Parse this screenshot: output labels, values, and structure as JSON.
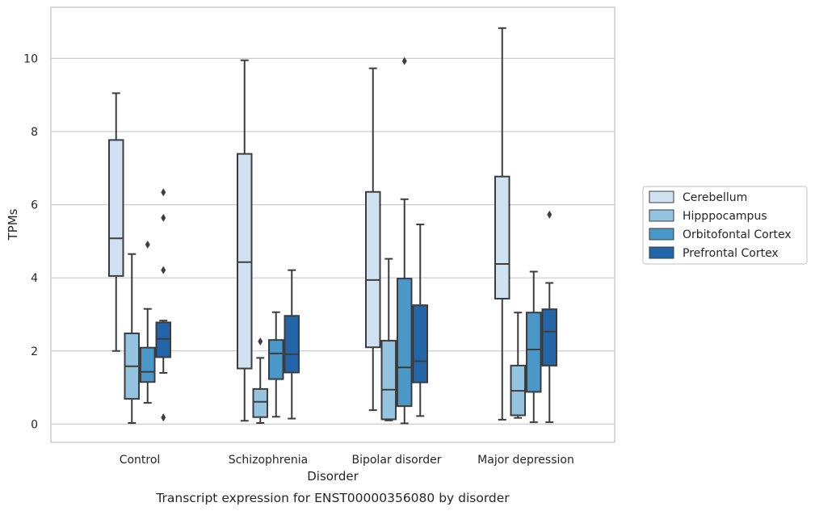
{
  "chart_data": {
    "type": "box",
    "title": "",
    "caption": "Transcript expression for ENST00000356080 by disorder",
    "xlabel": "Disorder",
    "ylabel": "TPMs",
    "ylim": [
      -0.5,
      11.4
    ],
    "yticks": [
      "0",
      "2",
      "4",
      "6",
      "8",
      "10"
    ],
    "grid": "horizontal",
    "legend_position": "right",
    "categories": [
      "Control",
      "Schizophrenia",
      "Bipolar disorder",
      "Major depression"
    ],
    "series": [
      {
        "name": "Cerebellum",
        "color": "#d0e1f2",
        "boxes": [
          {
            "whisker_low": 2.0,
            "q1": 4.05,
            "median": 5.08,
            "q3": 7.77,
            "whisker_high": 9.05,
            "outliers": []
          },
          {
            "whisker_low": 0.09,
            "q1": 1.52,
            "median": 4.43,
            "q3": 7.39,
            "whisker_high": 9.95,
            "outliers": []
          },
          {
            "whisker_low": 0.38,
            "q1": 2.1,
            "median": 3.94,
            "q3": 6.35,
            "whisker_high": 9.73,
            "outliers": []
          },
          {
            "whisker_low": 0.12,
            "q1": 3.43,
            "median": 4.38,
            "q3": 6.77,
            "whisker_high": 10.83,
            "outliers": []
          }
        ]
      },
      {
        "name": "Hipppocampus",
        "color": "#94c4df",
        "boxes": [
          {
            "whisker_low": 0.03,
            "q1": 0.69,
            "median": 1.58,
            "q3": 2.48,
            "whisker_high": 4.65,
            "outliers": []
          },
          {
            "whisker_low": 0.03,
            "q1": 0.19,
            "median": 0.61,
            "q3": 0.96,
            "whisker_high": 1.81,
            "outliers": [
              2.26
            ]
          },
          {
            "whisker_low": 0.1,
            "q1": 0.13,
            "median": 0.94,
            "q3": 2.28,
            "whisker_high": 4.52,
            "outliers": []
          },
          {
            "whisker_low": 0.17,
            "q1": 0.24,
            "median": 0.91,
            "q3": 1.6,
            "whisker_high": 3.05,
            "outliers": []
          }
        ]
      },
      {
        "name": "Orbitofontal Cortex",
        "color": "#4a98c9",
        "boxes": [
          {
            "whisker_low": 0.58,
            "q1": 1.15,
            "median": 1.43,
            "q3": 2.09,
            "whisker_high": 3.15,
            "outliers": [
              4.91
            ]
          },
          {
            "whisker_low": 0.2,
            "q1": 1.23,
            "median": 1.93,
            "q3": 2.3,
            "whisker_high": 3.06,
            "outliers": []
          },
          {
            "whisker_low": 0.02,
            "q1": 0.49,
            "median": 1.55,
            "q3": 3.98,
            "whisker_high": 6.15,
            "outliers": [
              9.93
            ]
          },
          {
            "whisker_low": 0.05,
            "q1": 0.88,
            "median": 2.04,
            "q3": 3.05,
            "whisker_high": 4.17,
            "outliers": []
          }
        ]
      },
      {
        "name": "Prefrontal Cortex",
        "color": "#2265a9",
        "boxes": [
          {
            "whisker_low": 1.4,
            "q1": 1.83,
            "median": 2.33,
            "q3": 2.78,
            "whisker_high": 2.83,
            "outliers": [
              6.34,
              5.64,
              4.21,
              0.18
            ]
          },
          {
            "whisker_low": 0.15,
            "q1": 1.41,
            "median": 1.91,
            "q3": 2.96,
            "whisker_high": 4.21,
            "outliers": []
          },
          {
            "whisker_low": 0.22,
            "q1": 1.14,
            "median": 1.72,
            "q3": 3.25,
            "whisker_high": 5.46,
            "outliers": []
          },
          {
            "whisker_low": 0.05,
            "q1": 1.6,
            "median": 2.53,
            "q3": 3.14,
            "whisker_high": 3.86,
            "outliers": [
              5.73
            ]
          }
        ]
      }
    ]
  }
}
